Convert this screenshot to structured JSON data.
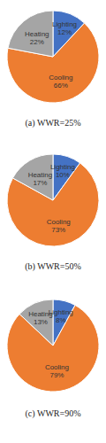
{
  "chart_data": [
    {
      "type": "pie",
      "title": "(a) WWR=25%",
      "categories": [
        "Lighting",
        "Cooling",
        "Heating"
      ],
      "values": [
        12,
        66,
        22
      ],
      "value_labels": [
        "12%",
        "66%",
        "22%"
      ],
      "colors": [
        "#4472c4",
        "#ed7d31",
        "#a5a5a5"
      ],
      "data_labels": true
    },
    {
      "type": "pie",
      "title": "(b) WWR=50%",
      "categories": [
        "Lighting",
        "Cooling",
        "Heating"
      ],
      "values": [
        10,
        73,
        17
      ],
      "value_labels": [
        "10%",
        "73%",
        "17%"
      ],
      "colors": [
        "#4472c4",
        "#ed7d31",
        "#a5a5a5"
      ],
      "data_labels": true
    },
    {
      "type": "pie",
      "title": "(c) WWR=90%",
      "categories": [
        "Lighting",
        "Cooling",
        "Heating"
      ],
      "values": [
        8,
        79,
        13
      ],
      "value_labels": [
        "8%",
        "79%",
        "13%"
      ],
      "colors": [
        "#4472c4",
        "#ed7d31",
        "#a5a5a5"
      ],
      "data_labels": true
    }
  ]
}
